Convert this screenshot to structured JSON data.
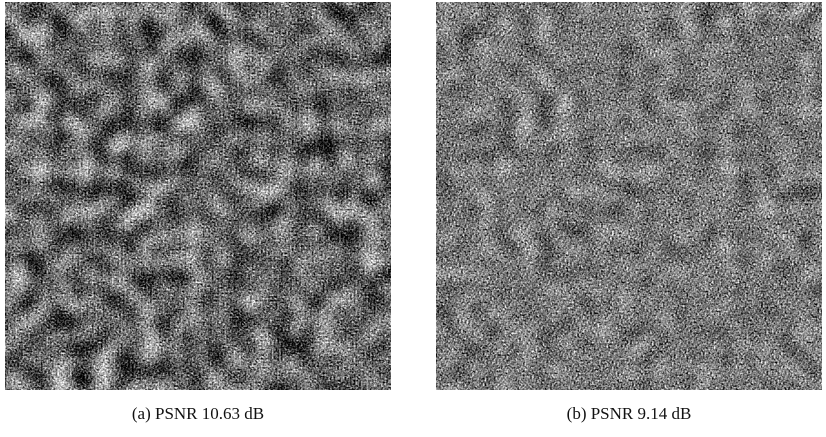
{
  "figures": [
    {
      "caption": "(a) PSNR 10.63 dB"
    },
    {
      "caption": "(b) PSNR 9.14 dB"
    }
  ]
}
